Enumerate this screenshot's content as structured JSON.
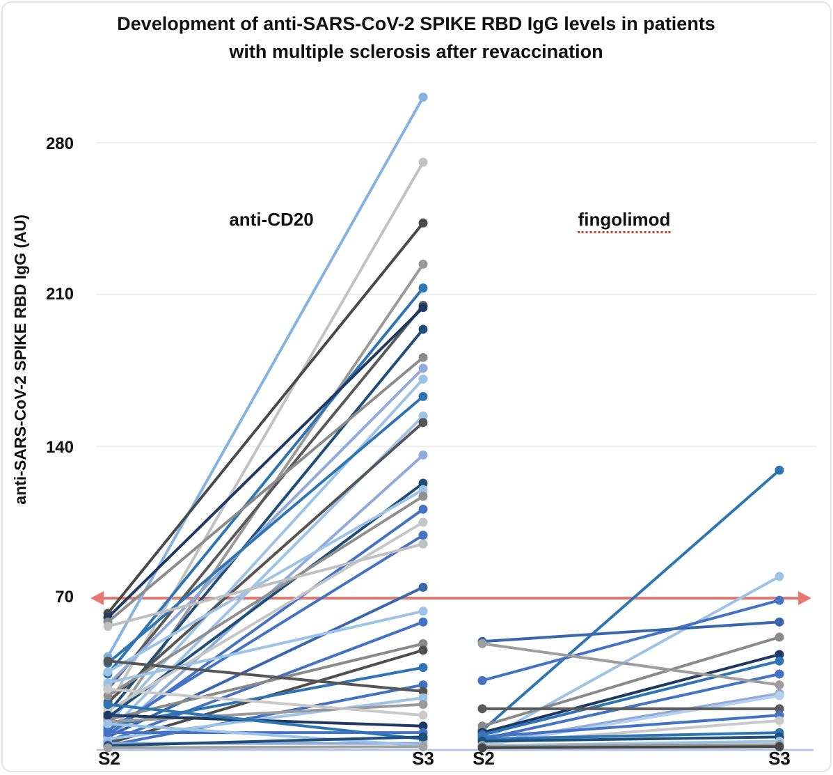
{
  "title": {
    "line1": "Development of anti-SARS-CoV-2 SPIKE RBD IgG levels in patients",
    "line2": "with multiple sclerosis after revaccination"
  },
  "chart_data": {
    "type": "line",
    "subtype": "paired-slope-chart",
    "ylabel": "anti-SARS-CoV-2 SPIKE RBD IgG (AU)",
    "ylim": [
      0,
      310
    ],
    "yticks": [
      280,
      210,
      140,
      70
    ],
    "ytick_labels": [
      "280",
      "210",
      "140",
      "70"
    ],
    "x_labels": [
      "S2",
      "S3",
      "S2",
      "S3"
    ],
    "grid": true,
    "gridline_color": "#e9e9e9",
    "baseline_color": "#a9c7e4",
    "threshold": {
      "value": 70,
      "color": "#e8786e",
      "style": "double-headed-arrow"
    },
    "panels": [
      {
        "label": "anti-CD20",
        "x_categories": [
          "S2",
          "S3"
        ],
        "lines": [
          {
            "s2": 43,
            "s3": 301,
            "color": "#85b3e1"
          },
          {
            "s2": 20,
            "s3": 271,
            "color": "#c2c2c2"
          },
          {
            "s2": 63,
            "s3": 243,
            "color": "#4a4a4a"
          },
          {
            "s2": 10,
            "s3": 224,
            "color": "#9a9a9a"
          },
          {
            "s2": 35,
            "s3": 213,
            "color": "#2e75b6"
          },
          {
            "s2": 28,
            "s3": 205,
            "color": "#5a5a5a"
          },
          {
            "s2": 61,
            "s3": 204,
            "color": "#1f3864"
          },
          {
            "s2": 17,
            "s3": 194,
            "color": "#1f4e79"
          },
          {
            "s2": 59,
            "s3": 181,
            "color": "#8c8c8c"
          },
          {
            "s2": 30,
            "s3": 176,
            "color": "#8faadc"
          },
          {
            "s2": 12,
            "s3": 171,
            "color": "#9dc3e6"
          },
          {
            "s2": 40,
            "s3": 163,
            "color": "#2e75b6"
          },
          {
            "s2": 8,
            "s3": 154,
            "color": "#9dc3e6"
          },
          {
            "s2": 22,
            "s3": 151,
            "color": "#555555"
          },
          {
            "s2": 5,
            "s3": 136,
            "color": "#8faadc"
          },
          {
            "s2": 15,
            "s3": 123,
            "color": "#1f4e79"
          },
          {
            "s2": 36,
            "s3": 120,
            "color": "#9dc3e6"
          },
          {
            "s2": 25,
            "s3": 117,
            "color": "#8f8f8f"
          },
          {
            "s2": 7,
            "s3": 111,
            "color": "#4472c4"
          },
          {
            "s2": 18,
            "s3": 105,
            "color": "#c6c6c6"
          },
          {
            "s2": 9,
            "s3": 99,
            "color": "#4472c4"
          },
          {
            "s2": 57,
            "s3": 95,
            "color": "#c0c0c0"
          },
          {
            "s2": 6,
            "s3": 75,
            "color": "#3a66ad"
          },
          {
            "s2": 31,
            "s3": 64,
            "color": "#9dc3e6"
          },
          {
            "s2": 4,
            "s3": 59,
            "color": "#4472c4"
          },
          {
            "s2": 14,
            "s3": 49,
            "color": "#8a8a8a"
          },
          {
            "s2": 3,
            "s3": 46,
            "color": "#4f4f4f"
          },
          {
            "s2": 11,
            "s3": 38,
            "color": "#2e75b6"
          },
          {
            "s2": 2,
            "s3": 30,
            "color": "#4472c4"
          },
          {
            "s2": 41,
            "s3": 27,
            "color": "#565656"
          },
          {
            "s2": 5,
            "s3": 24,
            "color": "#9dc3e6"
          },
          {
            "s2": 13,
            "s3": 21,
            "color": "#9b9b9b"
          },
          {
            "s2": 28,
            "s3": 16,
            "color": "#c9c9c9"
          },
          {
            "s2": 16,
            "s3": 11,
            "color": "#1f3864"
          },
          {
            "s2": 8,
            "s3": 8,
            "color": "#4472c4"
          },
          {
            "s2": 21,
            "s3": 5,
            "color": "#2e75b6"
          },
          {
            "s2": 3,
            "s3": 3,
            "color": "#8faadc"
          },
          {
            "s2": 12,
            "s3": 2,
            "color": "#9dc3e6"
          },
          {
            "s2": 2,
            "s3": 6,
            "color": "#1f4e79"
          },
          {
            "s2": 1,
            "s3": 1.5,
            "color": "#a0a0a0"
          }
        ]
      },
      {
        "label": "fingolimod",
        "label_underline": "red-dotted",
        "x_categories": [
          "S2",
          "S3"
        ],
        "lines": [
          {
            "s2": 9,
            "s3": 129,
            "color": "#2e75b6"
          },
          {
            "s2": 4,
            "s3": 80,
            "color": "#9dc3e6"
          },
          {
            "s2": 32,
            "s3": 69,
            "color": "#4472c4"
          },
          {
            "s2": 50,
            "s3": 59,
            "color": "#3a66ad"
          },
          {
            "s2": 11,
            "s3": 52,
            "color": "#8a8a8a"
          },
          {
            "s2": 8,
            "s3": 44,
            "color": "#1f3864"
          },
          {
            "s2": 7,
            "s3": 41,
            "color": "#2e75b6"
          },
          {
            "s2": 5,
            "s3": 35,
            "color": "#4472c4"
          },
          {
            "s2": 49,
            "s3": 30,
            "color": "#9e9e9e"
          },
          {
            "s2": 3,
            "s3": 26,
            "color": "#8faadc"
          },
          {
            "s2": 2,
            "s3": 25,
            "color": "#b8d0ec"
          },
          {
            "s2": 19,
            "s3": 19,
            "color": "#5a5a5a"
          },
          {
            "s2": 6,
            "s3": 16,
            "color": "#4472c4"
          },
          {
            "s2": 3,
            "s3": 13.5,
            "color": "#c9c9c9"
          },
          {
            "s2": 5,
            "s3": 8,
            "color": "#2e75b6"
          },
          {
            "s2": 4,
            "s3": 6,
            "color": "#1f4e79"
          },
          {
            "s2": 2,
            "s3": 4,
            "color": "#9dc3e6"
          },
          {
            "s2": 1.5,
            "s3": 2.5,
            "color": "#9b9b9b"
          },
          {
            "s2": 1,
            "s3": 1.5,
            "color": "#474747"
          }
        ]
      }
    ]
  }
}
